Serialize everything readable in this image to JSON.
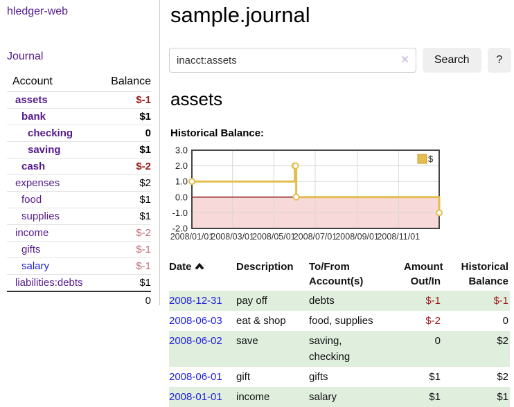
{
  "sidebar": {
    "app_title": "hledger-web",
    "journal_label": "Journal",
    "accounts_table": {
      "headers": {
        "account": "Account",
        "balance": "Balance"
      },
      "rows": [
        {
          "name": "assets",
          "indent": 1,
          "bold": true,
          "link_color": "purple",
          "balance": "$-1",
          "balance_class": "neg-strong"
        },
        {
          "name": "bank",
          "indent": 2,
          "bold": true,
          "link_color": "purple",
          "balance": "$1",
          "balance_class": ""
        },
        {
          "name": "checking",
          "indent": 3,
          "bold": true,
          "link_color": "purple",
          "balance": "0",
          "balance_class": ""
        },
        {
          "name": "saving",
          "indent": 3,
          "bold": true,
          "link_color": "purple",
          "balance": "$1",
          "balance_class": ""
        },
        {
          "name": "cash",
          "indent": 2,
          "bold": true,
          "link_color": "purple",
          "balance": "$-2",
          "balance_class": "neg-strong"
        },
        {
          "name": "expenses",
          "indent": 1,
          "bold": false,
          "link_color": "purple",
          "balance": "$2",
          "balance_class": ""
        },
        {
          "name": "food",
          "indent": 2,
          "bold": false,
          "link_color": "purple",
          "balance": "$1",
          "balance_class": ""
        },
        {
          "name": "supplies",
          "indent": 2,
          "bold": false,
          "link_color": "purple",
          "balance": "$1",
          "balance_class": ""
        },
        {
          "name": "income",
          "indent": 1,
          "bold": false,
          "link_color": "purple",
          "balance": "$-2",
          "balance_class": "neg-soft"
        },
        {
          "name": "gifts",
          "indent": 2,
          "bold": false,
          "link_color": "purple",
          "balance": "$-1",
          "balance_class": "neg-soft"
        },
        {
          "name": "salary",
          "indent": 2,
          "bold": false,
          "link_color": "blue",
          "balance": "$-1",
          "balance_class": "neg-soft"
        },
        {
          "name": "liabilities:debts",
          "indent": 1,
          "bold": false,
          "link_color": "purple",
          "balance": "$1",
          "balance_class": ""
        }
      ],
      "total": "0"
    }
  },
  "main": {
    "title": "sample.journal",
    "search": {
      "value": "inacct:assets",
      "clear_icon": "✕",
      "button_label": "Search",
      "help_label": "?"
    },
    "section_title": "assets",
    "chart_label": "Historical Balance:",
    "register_table": {
      "headers": {
        "date": "Date",
        "description": "Description",
        "accounts": "To/From\nAccount(s)",
        "amount": "Amount\nOut/In",
        "balance": "Historical\nBalance"
      },
      "rows": [
        {
          "date": "2008-12-31",
          "description": "pay off",
          "accounts": "debts",
          "amount": "$-1",
          "balance": "$-1",
          "amount_neg": true,
          "balance_neg": true,
          "shaded": true
        },
        {
          "date": "2008-06-03",
          "description": "eat & shop",
          "accounts": "food, supplies",
          "amount": "$-2",
          "balance": "0",
          "amount_neg": true,
          "balance_neg": false,
          "shaded": false
        },
        {
          "date": "2008-06-02",
          "description": "save",
          "accounts": "saving,\nchecking",
          "amount": "0",
          "balance": "$2",
          "amount_neg": false,
          "balance_neg": false,
          "shaded": true
        },
        {
          "date": "2008-06-01",
          "description": "gift",
          "accounts": "gifts",
          "amount": "$1",
          "balance": "$2",
          "amount_neg": false,
          "balance_neg": false,
          "shaded": false
        },
        {
          "date": "2008-01-01",
          "description": "income",
          "accounts": "salary",
          "amount": "$1",
          "balance": "$1",
          "amount_neg": false,
          "balance_neg": false,
          "shaded": true
        }
      ]
    }
  },
  "chart_data": {
    "type": "line",
    "step": true,
    "title": "Historical Balance:",
    "series": [
      {
        "name": "$",
        "points": [
          [
            "2008-01-01",
            1
          ],
          [
            "2008-06-01",
            2
          ],
          [
            "2008-06-02",
            2
          ],
          [
            "2008-06-03",
            0
          ],
          [
            "2008-12-31",
            -1
          ]
        ]
      }
    ],
    "ylim": [
      -2,
      3
    ],
    "ytick_labels": [
      "3.0",
      "2.0",
      "1.0",
      "0.0",
      "-1.0",
      "-2.0"
    ],
    "xtick_labels": [
      "2008/01/01",
      "2008/03/01",
      "2008/05/01",
      "2008/07/01",
      "2008/09/01",
      "2008/11/01"
    ],
    "legend": {
      "label": "$",
      "position": "top-right"
    },
    "grid": true,
    "colors": {
      "line": "#e3bd4e",
      "marker_fill": "#ffffff",
      "legend_border": "#c49b2a",
      "negative_fill": "#f8d9d9",
      "zero_line": "#8b1a1a",
      "grid": "#d8d8d8",
      "border": "#454545",
      "tick_text": "#333333"
    }
  }
}
